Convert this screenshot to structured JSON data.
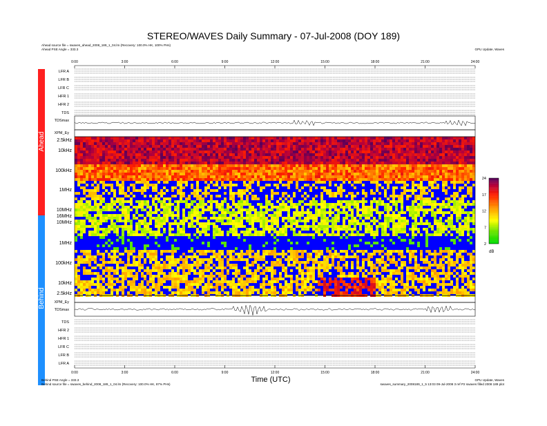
{
  "chart_data": {
    "type": "heatmap",
    "title": "STEREO/WAVES Daily Summary - 07-Jul-2008 (DOY 189)",
    "ahead_source": "Ahead source file = swaves_ahead_2008_189_1_04.lm (Recovery: 100.0% HK, 100% PHs)",
    "ahead_angle": "Ahead PSE Angle = 333.3",
    "behind_angle": "Behind PSE Angle = 333.3",
    "behind_source": "Behind source file = swaves_behind_2008_189_1_04.lm (Recovery: 100.0% HK, 87% PHs)",
    "credit_top": "GPU Update, Waves",
    "credit_bottom": "GPU Update, Waves",
    "footer_right": "swaves_summary_2008189_1_5 13:03 09-Jul-2008 3 ref P2 swaves filled 2008 189 plot",
    "xlabel": "Time (UTC)",
    "xticks": [
      "0:00",
      "3:00",
      "6:00",
      "9:00",
      "12:00",
      "15:00",
      "18:00",
      "21:00",
      "24:00"
    ],
    "side_labels": {
      "ahead": "Ahead",
      "behind": "Behind"
    },
    "colors": {
      "ahead": "#ff2020",
      "behind": "#1e90ff"
    },
    "ahead_panels": [
      "LFR A",
      "LFR B",
      "LFR C",
      "HFR 1",
      "HFR 2",
      "TDS",
      "TDSmax"
    ],
    "behind_panels": [
      "TDSmax",
      "TDS",
      "HFR 2",
      "HFR 1",
      "LFR C",
      "LFR B",
      "LFR A"
    ],
    "ahead_ey_label": "XPM_Ey",
    "behind_ey_label": "XPM_Ey",
    "ahead_freq_labels": [
      "2.5kHz",
      "10kHz",
      "100kHz",
      "1MHz",
      "10MHz",
      "16MHz",
      "10MHz"
    ],
    "behind_freq_labels": [
      "1MHz",
      "100kHz",
      "10kHz",
      "2.5kHz"
    ],
    "colorbar": {
      "ticks": [
        "24",
        "17",
        "12",
        "7",
        "2"
      ],
      "unit": "dB",
      "range": [
        2,
        24
      ]
    }
  }
}
